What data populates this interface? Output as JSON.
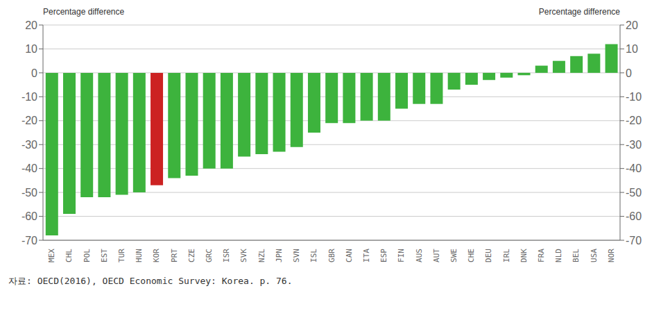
{
  "chart_data": {
    "type": "bar",
    "ylabel": "Percentage difference",
    "y2label": "Percentage difference",
    "categories": [
      "MEX",
      "CHL",
      "POL",
      "EST",
      "TUR",
      "HUN",
      "KOR",
      "PRT",
      "CZE",
      "GRC",
      "ISR",
      "SVK",
      "NZL",
      "JPN",
      "SVN",
      "ISL",
      "GBR",
      "CAN",
      "ITA",
      "ESP",
      "FIN",
      "AUS",
      "AUT",
      "SWE",
      "CHE",
      "DEU",
      "IRL",
      "DNK",
      "FRA",
      "NLD",
      "BEL",
      "USA",
      "NOR"
    ],
    "values": [
      -68,
      -59,
      -52,
      -52,
      -51,
      -50,
      -47,
      -44,
      -43,
      -40,
      -40,
      -35,
      -34,
      -33,
      -31,
      -25,
      -21,
      -21,
      -20,
      -20,
      -15,
      -13,
      -13,
      -7,
      -5,
      -3,
      -2,
      -1,
      3,
      5,
      7,
      8,
      12
    ],
    "colors": [
      "#3db33d",
      "#3db33d",
      "#3db33d",
      "#3db33d",
      "#3db33d",
      "#3db33d",
      "#cc2222",
      "#3db33d",
      "#3db33d",
      "#3db33d",
      "#3db33d",
      "#3db33d",
      "#3db33d",
      "#3db33d",
      "#3db33d",
      "#3db33d",
      "#3db33d",
      "#3db33d",
      "#3db33d",
      "#3db33d",
      "#3db33d",
      "#3db33d",
      "#3db33d",
      "#3db33d",
      "#3db33d",
      "#3db33d",
      "#3db33d",
      "#3db33d",
      "#3db33d",
      "#3db33d",
      "#3db33d",
      "#3db33d",
      "#3db33d"
    ],
    "ylim": [
      -70,
      20
    ],
    "yticks": [
      -70,
      -60,
      -50,
      -40,
      -30,
      -20,
      -10,
      0,
      10,
      20
    ],
    "y2lim": [
      -70,
      20
    ],
    "y2ticks": [
      -70,
      -60,
      -50,
      -40,
      -30,
      -20,
      -10,
      0,
      10,
      20
    ],
    "grid": true,
    "annotations": [
      "자료: OECD(2016), OECD Economic Survey: Korea. p. 76."
    ]
  }
}
